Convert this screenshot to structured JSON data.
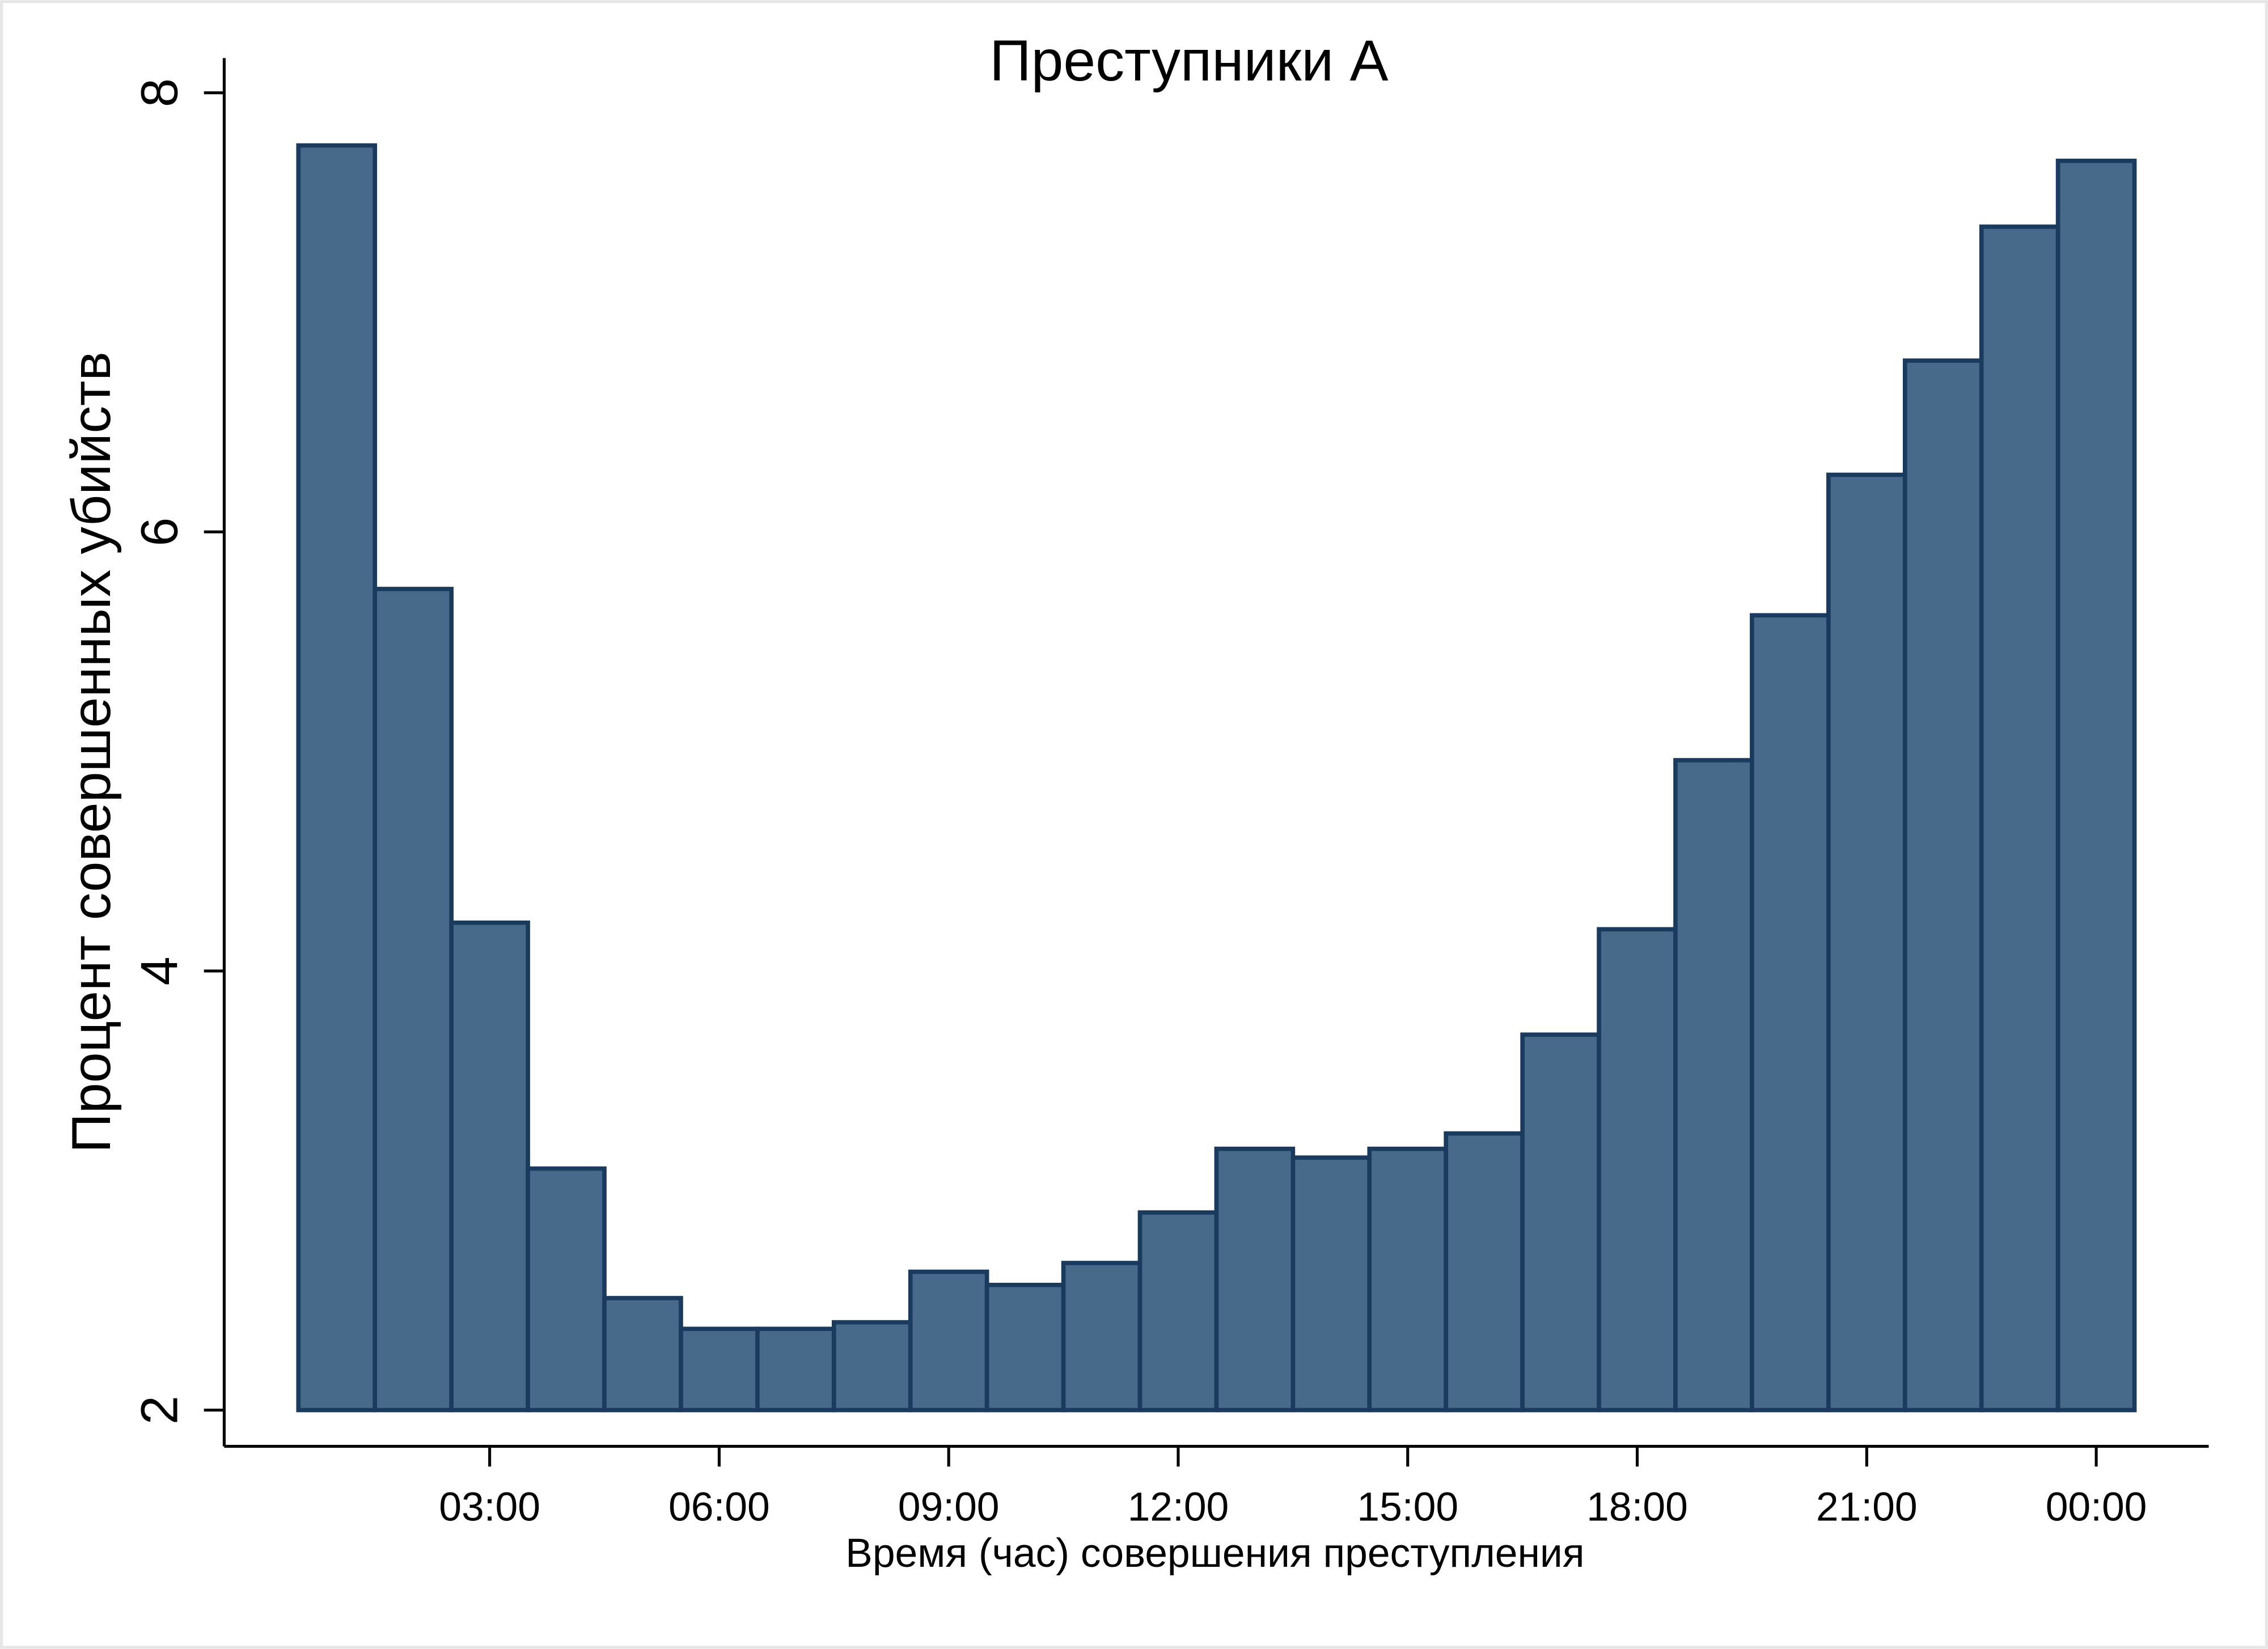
{
  "chart_data": {
    "type": "histogram",
    "title": "Преступники А",
    "xlabel": "Время (час) совершения преступления",
    "ylabel": "Процент совершенных убийств",
    "bins": [
      0.5,
      1.5,
      2.5,
      3.5,
      4.5,
      5.5,
      6.5,
      7.5,
      8.5,
      9.5,
      10.5,
      11.5,
      12.5,
      13.5,
      14.5,
      15.5,
      16.5,
      17.5,
      18.5,
      19.5,
      20.5,
      21.5,
      22.5,
      23.5,
      24.5
    ],
    "values": [
      7.76,
      5.74,
      4.22,
      3.1,
      2.51,
      2.37,
      2.37,
      2.4,
      2.63,
      2.57,
      2.67,
      2.9,
      3.19,
      3.15,
      3.19,
      3.26,
      3.71,
      4.19,
      4.96,
      5.62,
      6.26,
      6.78,
      7.39,
      7.69
    ],
    "color": "#476a8a",
    "edgecolor": "#1b3b5e",
    "xlim": [
      -0.47,
      25.47
    ],
    "ylim": [
      1.835,
      8.158
    ],
    "xticks": [
      {
        "value": 3,
        "label": "03:00"
      },
      {
        "value": 6,
        "label": "06:00"
      },
      {
        "value": 9,
        "label": "09:00"
      },
      {
        "value": 12,
        "label": "12:00"
      },
      {
        "value": 15,
        "label": "15:00"
      },
      {
        "value": 18,
        "label": "18:00"
      },
      {
        "value": 21,
        "label": "21:00"
      },
      {
        "value": 24,
        "label": "00:00"
      }
    ],
    "yticks": [
      2,
      4,
      6,
      8
    ]
  }
}
